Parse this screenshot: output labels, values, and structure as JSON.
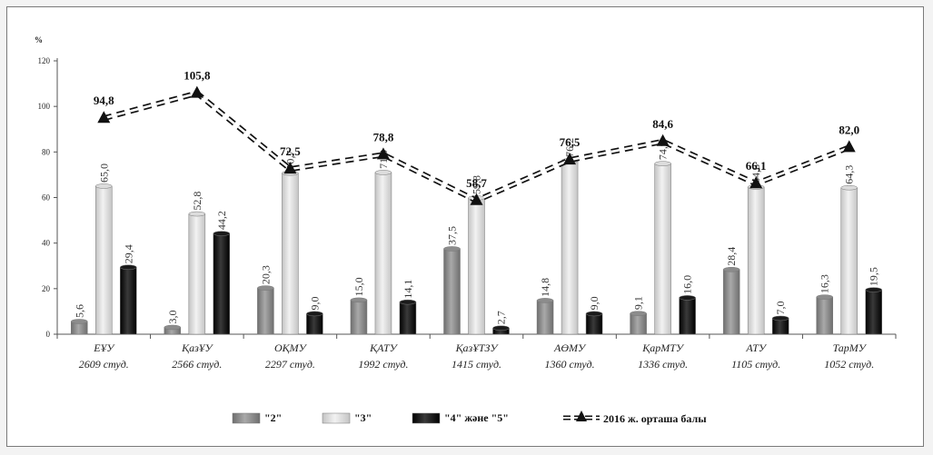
{
  "chart_data": {
    "type": "bar",
    "ylabel": "%",
    "ylim": [
      0,
      120
    ],
    "yticks": [
      "0",
      "20",
      "40",
      "60",
      "80",
      "100",
      "120"
    ],
    "categories": [
      {
        "name": "ЕҰУ",
        "sub": "2609 студ."
      },
      {
        "name": "ҚазҰУ",
        "sub": "2566 студ."
      },
      {
        "name": "ОҚМУ",
        "sub": "2297 студ."
      },
      {
        "name": "ҚАТУ",
        "sub": "1992 студ."
      },
      {
        "name": "ҚазҰТЗУ",
        "sub": "1415 студ."
      },
      {
        "name": "АӨМУ",
        "sub": "1360 студ."
      },
      {
        "name": "ҚарМТУ",
        "sub": "1336 студ."
      },
      {
        "name": "АТУ",
        "sub": "1105 студ."
      },
      {
        "name": "ТарМУ",
        "sub": "1052 студ."
      }
    ],
    "series": [
      {
        "name": "\"2\"",
        "kind": "bar",
        "color": "#8c8c8c",
        "values": [
          5.6,
          3.0,
          20.3,
          15.0,
          37.5,
          14.8,
          9.1,
          28.4,
          16.3
        ],
        "labels": [
          "5,6",
          "3,0",
          "20,3",
          "15,0",
          "37,5",
          "14,8",
          "9,1",
          "28,4",
          "16,3"
        ]
      },
      {
        "name": "\"3\"",
        "kind": "bar",
        "color": "#dcdcdc",
        "values": [
          65.0,
          52.8,
          70.7,
          71.0,
          59.8,
          76.2,
          74.9,
          64.6,
          64.3
        ],
        "labels": [
          "65,0",
          "52,8",
          "70,7",
          "71,0",
          "59,8",
          "76,2",
          "74,9",
          "64,6",
          "64,3"
        ]
      },
      {
        "name": "\"4\" және \"5\"",
        "kind": "bar",
        "color": "#1a1a1a",
        "values": [
          29.4,
          44.2,
          9.0,
          14.1,
          2.7,
          9.0,
          16.0,
          7.0,
          19.5
        ],
        "labels": [
          "29,4",
          "44,2",
          "9,0",
          "14,1",
          "2,7",
          "9,0",
          "16,0",
          "7,0",
          "19,5"
        ]
      },
      {
        "name": "2016 ж. орташа балы",
        "kind": "line",
        "color": "#111111",
        "values": [
          94.8,
          105.8,
          72.5,
          78.8,
          58.7,
          76.5,
          84.6,
          66.1,
          82.0
        ],
        "labels": [
          "94,8",
          "105,8",
          "72,5",
          "78,8",
          "58,7",
          "76,5",
          "84,6",
          "66,1",
          "82,0"
        ]
      }
    ],
    "grid": false,
    "legend": "bottom"
  }
}
